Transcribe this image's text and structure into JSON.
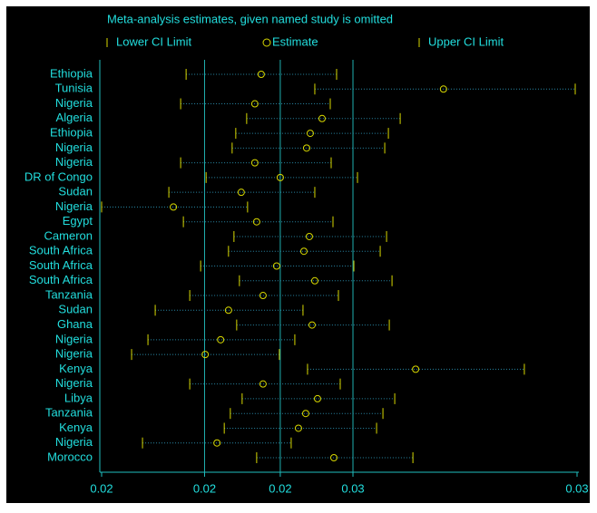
{
  "chart_data": {
    "type": "ci-plot",
    "title": "Meta-analysis estimates, given named study is omitted",
    "categories": [
      "Ethiopia",
      "Tunisia",
      "Nigeria",
      "Algeria",
      "Ethiopia",
      "Nigeria",
      "Nigeria",
      "DR of Congo",
      "Sudan",
      "Nigeria",
      "Egypt",
      "Cameron",
      "South Africa",
      "South Africa",
      "South Africa",
      "Tanzania",
      "Sudan",
      "Ghana",
      "Nigeria",
      "Nigeria",
      "Kenya",
      "Nigeria",
      "Libya",
      "Tanzania",
      "Kenya",
      "Nigeria",
      "Morocco"
    ],
    "series": [
      {
        "name": "Lower CI Limit",
        "color": "#d8d800",
        "values": [
          0.02139,
          0.02564,
          0.02121,
          0.02339,
          0.02303,
          0.02291,
          0.02121,
          0.02205,
          0.02082,
          0.0186,
          0.0213,
          0.02297,
          0.02279,
          0.02187,
          0.02315,
          0.02151,
          0.02037,
          0.02306,
          0.02013,
          0.01959,
          0.0254,
          0.02151,
          0.02324,
          0.02285,
          0.02265,
          0.01995,
          0.02372
        ]
      },
      {
        "name": "Estimate",
        "color": "#d8d800",
        "values": [
          0.02387,
          0.02989,
          0.02366,
          0.02588,
          0.02549,
          0.02537,
          0.02366,
          0.0245,
          0.02321,
          0.02097,
          0.02372,
          0.02546,
          0.02528,
          0.02438,
          0.02564,
          0.02393,
          0.02279,
          0.02555,
          0.02253,
          0.02202,
          0.02897,
          0.02393,
          0.02573,
          0.02534,
          0.0251,
          0.02241,
          0.02627
        ]
      },
      {
        "name": "Upper CI Limit",
        "color": "#d8d800",
        "values": [
          0.02636,
          0.03424,
          0.02615,
          0.02846,
          0.02807,
          0.02795,
          0.02618,
          0.02705,
          0.02564,
          0.02342,
          0.02624,
          0.02801,
          0.0278,
          0.02693,
          0.02819,
          0.02642,
          0.02525,
          0.0281,
          0.02498,
          0.02447,
          0.03256,
          0.02648,
          0.02828,
          0.02789,
          0.02768,
          0.02486,
          0.02888
        ]
      }
    ],
    "xlim": [
      0.0186,
      0.0343
    ],
    "xticks": [
      {
        "value": 0.0186,
        "label": "0.02"
      },
      {
        "value": 0.022,
        "label": "0.02"
      },
      {
        "value": 0.0245,
        "label": "0.02"
      },
      {
        "value": 0.0269,
        "label": "0.03"
      },
      {
        "value": 0.0343,
        "label": "0.03"
      }
    ],
    "grid": true
  }
}
